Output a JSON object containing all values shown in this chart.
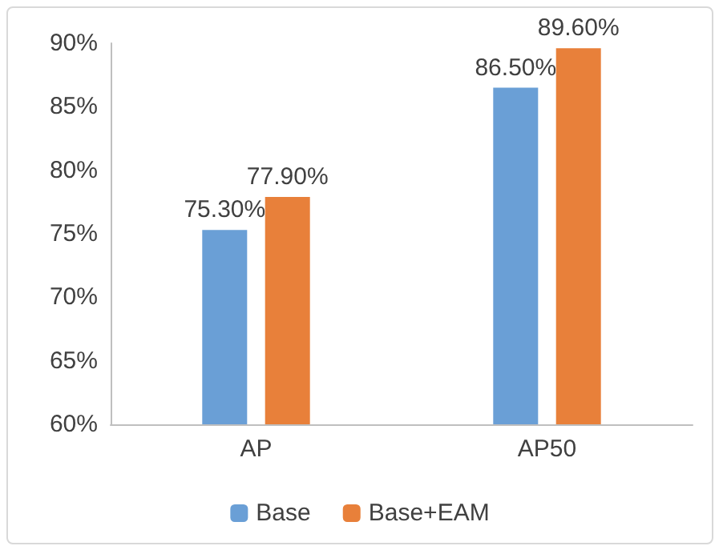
{
  "chart_data": {
    "type": "bar",
    "categories": [
      "AP",
      "AP50"
    ],
    "series": [
      {
        "name": "Base",
        "color": "#6a9fd6",
        "values": [
          75.3,
          86.5
        ],
        "value_labels": [
          "75.30%",
          "86.50%"
        ]
      },
      {
        "name": "Base+EAM",
        "color": "#e8803a",
        "values": [
          77.9,
          89.6
        ],
        "value_labels": [
          "77.90%",
          "89.60%"
        ]
      }
    ],
    "ylim": [
      60,
      90
    ],
    "yticks": [
      {
        "value": 60,
        "label": "60%"
      },
      {
        "value": 65,
        "label": "65%"
      },
      {
        "value": 70,
        "label": "70%"
      },
      {
        "value": 75,
        "label": "75%"
      },
      {
        "value": 80,
        "label": "80%"
      },
      {
        "value": 85,
        "label": "85%"
      },
      {
        "value": 90,
        "label": "90%"
      }
    ],
    "grid": false,
    "legend": "bottom"
  }
}
